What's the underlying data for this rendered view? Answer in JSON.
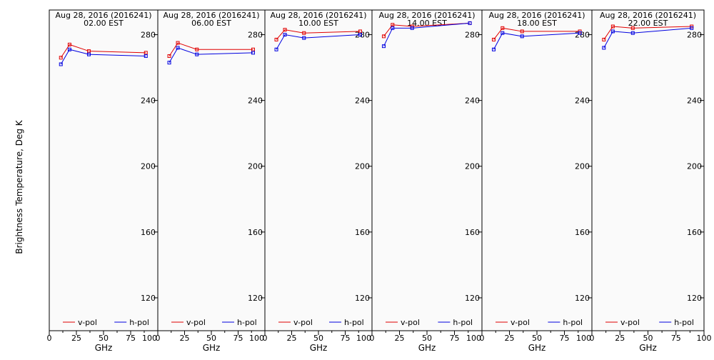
{
  "ylabel": "Brightness Temperature, Deg K",
  "chart_data": {
    "type": "line",
    "xlabel": "GHz",
    "ylabel": "Brightness Temperature, Deg K",
    "xlim": [
      0,
      100
    ],
    "ylim": [
      100,
      295
    ],
    "x_ticks": [
      0,
      25,
      50,
      75,
      100
    ],
    "x_ticks_last_panel": [
      0,
      25,
      50,
      75,
      100
    ],
    "y_ticks": [
      120,
      160,
      200,
      240,
      280
    ],
    "legend": {
      "placement": "bottom",
      "entries": [
        "v-pol",
        "h-pol"
      ]
    },
    "colors": {
      "v-pol": "#e00000",
      "h-pol": "#0000e0"
    },
    "panels": [
      {
        "title": "Aug 28, 2016 (2016241)",
        "subtitle": "02.00 EST",
        "x": [
          10.7,
          18.7,
          36.5,
          89.0
        ],
        "series": [
          {
            "name": "v-pol",
            "values": [
              266,
              274,
              270,
              269
            ]
          },
          {
            "name": "h-pol",
            "values": [
              262,
              271,
              268,
              267
            ]
          }
        ]
      },
      {
        "title": "Aug 28, 2016 (2016241)",
        "subtitle": "06.00 EST",
        "x": [
          10.7,
          18.7,
          36.5,
          89.0
        ],
        "series": [
          {
            "name": "v-pol",
            "values": [
              267,
              275,
              271,
              271
            ]
          },
          {
            "name": "h-pol",
            "values": [
              263,
              272,
              268,
              269
            ]
          }
        ]
      },
      {
        "title": "Aug 28, 2016 (2016241)",
        "subtitle": "10.00 EST",
        "x": [
          10.7,
          18.7,
          36.5,
          89.0
        ],
        "series": [
          {
            "name": "v-pol",
            "values": [
              277,
              283,
              281,
              282
            ]
          },
          {
            "name": "h-pol",
            "values": [
              271,
              280,
              278,
              280
            ]
          }
        ]
      },
      {
        "title": "Aug 28, 2016 (2016241)",
        "subtitle": "14.00 EST",
        "x": [
          10.7,
          18.7,
          36.5,
          89.0
        ],
        "series": [
          {
            "name": "v-pol",
            "values": [
              279,
              286,
              285,
              287
            ]
          },
          {
            "name": "h-pol",
            "values": [
              273,
              284,
              284,
              287
            ]
          }
        ]
      },
      {
        "title": "Aug 28, 2016 (2016241)",
        "subtitle": "18.00 EST",
        "x": [
          10.7,
          18.7,
          36.5,
          89.0
        ],
        "series": [
          {
            "name": "v-pol",
            "values": [
              277,
              284,
              282,
              282
            ]
          },
          {
            "name": "h-pol",
            "values": [
              271,
              281,
              279,
              281
            ]
          }
        ]
      },
      {
        "title": "Aug 28, 2016 (2016241)",
        "subtitle": "22.00 EST",
        "x": [
          10.7,
          18.7,
          36.5,
          89.0
        ],
        "series": [
          {
            "name": "v-pol",
            "values": [
              277,
              285,
              284,
              285
            ]
          },
          {
            "name": "h-pol",
            "values": [
              272,
              282,
              281,
              284
            ]
          }
        ]
      }
    ]
  }
}
